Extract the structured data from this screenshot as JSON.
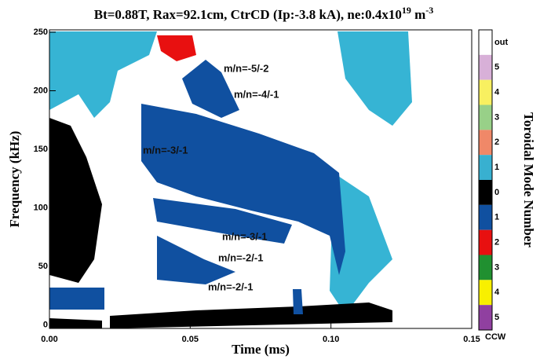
{
  "chart_data": {
    "type": "spectrogram",
    "title": {
      "text": "Bt=0.88T, Rax=92.1cm, CtrCD (Ip:-3.8 kA), ne:0.4x10",
      "exp": "19",
      "unit": " m",
      "unit_exp": "-3"
    },
    "x_label": "Time (ms)",
    "y_label": "Frequency (kHz)",
    "xlim": [
      0,
      0.15
    ],
    "xticks": [
      {
        "value": 0,
        "label": "0.00"
      },
      {
        "value": 0.05,
        "label": "0.05"
      },
      {
        "value": 0.1,
        "label": "0.10"
      },
      {
        "value": 0.15,
        "label": "0.15"
      }
    ],
    "ylim": [
      -3,
      252
    ],
    "yticks": [
      0,
      50,
      100,
      150,
      200,
      250
    ],
    "annotations": [
      "m/n=-5/-2",
      "m/n=-4/-1",
      "m/n=-3/-1",
      "m/n=-3/-1",
      "m/n=-2/-1",
      "m/n=-2/-1"
    ],
    "colorbar": {
      "title": "Toroidal Mode Number",
      "labels": [
        "out",
        "5",
        "4",
        "3",
        "2",
        "1",
        "0",
        "1",
        "2",
        "3",
        "4",
        "5"
      ],
      "colors": [
        "#ffffff",
        "#d8b0d8",
        "#f8f060",
        "#98d088",
        "#f08868",
        "#38b0d0",
        "#000000",
        "#1050a0",
        "#e81010",
        "#209030",
        "#f8f000",
        "#9040a0"
      ],
      "bottom_label": "CCW"
    }
  }
}
